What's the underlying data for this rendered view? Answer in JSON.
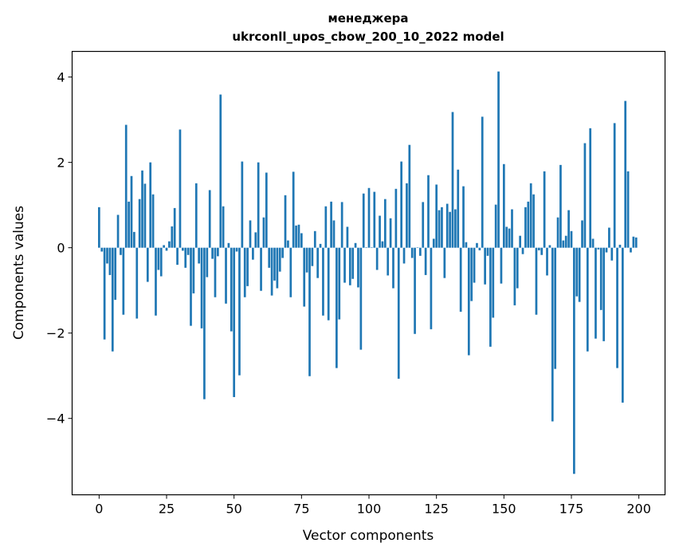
{
  "chart_data": {
    "type": "bar",
    "title_lines": [
      "менеджера",
      "ukrconll_upos_cbow_200_10_2022 model"
    ],
    "xlabel": "Vector components",
    "ylabel": "Components values",
    "xlim": [
      -10,
      209.7
    ],
    "ylim": [
      -5.79,
      4.6
    ],
    "xticks": [
      0,
      25,
      50,
      75,
      100,
      125,
      150,
      175,
      200
    ],
    "xtick_labels": [
      "0",
      "25",
      "50",
      "75",
      "100",
      "125",
      "150",
      "175",
      "200"
    ],
    "yticks": [
      -4,
      -2,
      0,
      2,
      4
    ],
    "ytick_labels": [
      "−4",
      "−2",
      "0",
      "2",
      "4"
    ],
    "grid": false,
    "bar_color": "#1f77b4",
    "values": [
      0.95,
      -0.09,
      -2.15,
      -0.37,
      -0.64,
      -2.43,
      -1.22,
      0.77,
      -0.17,
      -1.57,
      2.88,
      1.08,
      1.68,
      0.37,
      -1.66,
      1.14,
      1.81,
      1.5,
      -0.8,
      2.0,
      1.25,
      -1.59,
      -0.52,
      -0.67,
      0.06,
      -0.07,
      0.15,
      0.5,
      0.93,
      -0.4,
      2.77,
      -0.07,
      -0.47,
      -0.17,
      -1.83,
      -1.07,
      1.51,
      -0.37,
      -1.89,
      -3.55,
      -0.69,
      1.35,
      -0.26,
      -1.16,
      -0.2,
      3.59,
      0.97,
      -1.31,
      0.11,
      -1.96,
      -3.5,
      -0.09,
      -2.99,
      2.02,
      -1.16,
      -0.9,
      0.64,
      -0.28,
      0.36,
      2.0,
      -1.01,
      0.71,
      1.76,
      -0.47,
      -1.12,
      -0.77,
      -0.95,
      -0.56,
      -0.24,
      1.23,
      0.17,
      -1.16,
      1.78,
      0.52,
      0.54,
      0.34,
      -1.38,
      -0.58,
      -3.01,
      -0.43,
      0.39,
      -0.71,
      0.09,
      -1.59,
      0.97,
      -1.7,
      1.08,
      0.64,
      -2.82,
      -1.68,
      1.07,
      -0.82,
      0.49,
      -0.88,
      -0.73,
      0.11,
      -0.93,
      -2.39,
      1.27,
      0.01,
      1.4,
      0.01,
      1.31,
      -0.52,
      0.75,
      0.15,
      1.14,
      -0.65,
      0.69,
      -0.95,
      1.38,
      -3.07,
      2.02,
      -0.37,
      1.51,
      2.41,
      -0.24,
      -2.02,
      0.01,
      -0.19,
      1.07,
      -0.64,
      1.7,
      -1.91,
      0.21,
      1.48,
      0.88,
      0.95,
      -0.71,
      1.03,
      0.84,
      3.18,
      0.9,
      1.83,
      -1.5,
      1.44,
      0.13,
      -2.52,
      -1.25,
      -0.82,
      0.11,
      -0.06,
      3.07,
      -0.86,
      -0.19,
      -2.32,
      -1.64,
      1.01,
      4.13,
      -0.84,
      1.96,
      0.49,
      0.45,
      0.9,
      -1.35,
      -0.95,
      0.28,
      -0.15,
      0.95,
      1.08,
      1.51,
      1.25,
      -1.57,
      -0.06,
      -0.17,
      1.79,
      -0.65,
      0.06,
      -4.07,
      -2.84,
      0.71,
      1.94,
      0.17,
      0.28,
      0.88,
      0.39,
      -5.3,
      -1.14,
      -1.27,
      0.64,
      2.45,
      -2.43,
      2.8,
      0.21,
      -2.13,
      -0.04,
      -1.46,
      -2.19,
      -0.11,
      0.47,
      -0.3,
      2.92,
      -2.82,
      0.07,
      -3.63,
      3.44,
      1.79,
      -0.11,
      0.26,
      0.24
    ]
  }
}
